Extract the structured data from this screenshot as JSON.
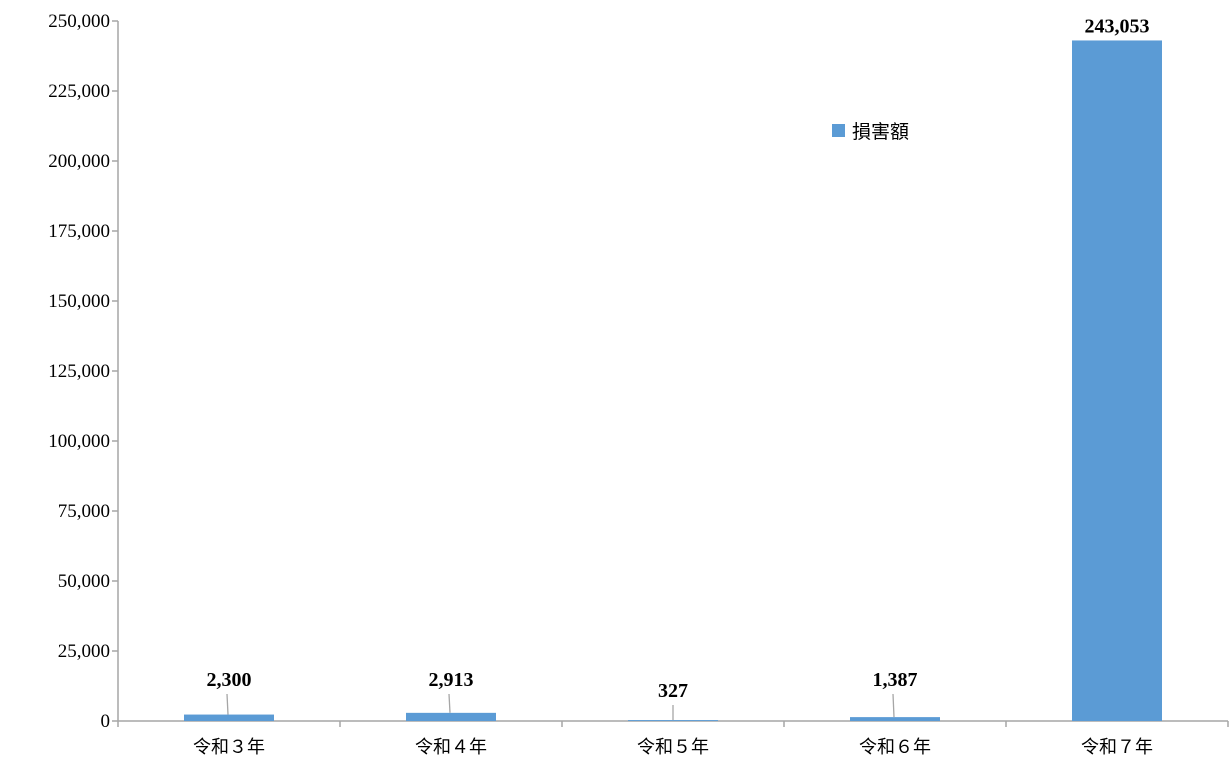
{
  "chart_data": {
    "type": "bar",
    "categories": [
      "令和３年",
      "令和４年",
      "令和５年",
      "令和６年",
      "令和７年"
    ],
    "series": [
      {
        "name": "損害額",
        "values": [
          2300,
          2913,
          327,
          1387,
          243053
        ],
        "labels": [
          "2,300",
          "2,913",
          "327",
          "1,387",
          "243,053"
        ],
        "color": "#5b9bd5"
      }
    ],
    "yticks": [
      "0",
      "25,000",
      "50,000",
      "75,000",
      "100,000",
      "125,000",
      "150,000",
      "175,000",
      "200,000",
      "225,000",
      "250,000"
    ],
    "ylim": [
      0,
      250000
    ],
    "legend_position": "top-right",
    "grid": false,
    "axis_color": "#a6a6a6",
    "leader_color": "#a6a6a6"
  }
}
